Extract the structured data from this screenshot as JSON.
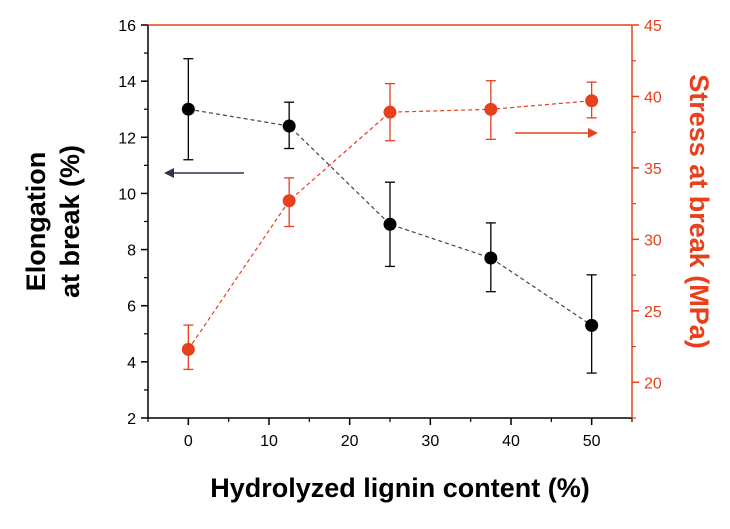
{
  "chart_data": {
    "type": "scatter",
    "xlabel": "Hydrolyzed lignin content (%)",
    "xlim": [
      -5,
      55
    ],
    "xticks": [
      0,
      10,
      20,
      30,
      40,
      50
    ],
    "y_left": {
      "label_line1": "Elongation",
      "label_line2": "at break (%)",
      "ylim": [
        2,
        16
      ],
      "ticks": [
        2,
        4,
        6,
        8,
        10,
        12,
        14,
        16
      ],
      "color": "#000000"
    },
    "y_right": {
      "label": "Stress at break (MPa)",
      "ylim": [
        17.5,
        45
      ],
      "ticks": [
        20,
        25,
        30,
        35,
        40,
        45
      ],
      "color": "#e8401c"
    },
    "series": [
      {
        "axis": "left",
        "color": "#000000",
        "x": [
          0,
          12.5,
          25,
          37.5,
          50
        ],
        "y": [
          13.0,
          12.4,
          8.9,
          7.7,
          5.3
        ],
        "err_low": [
          11.2,
          11.6,
          7.4,
          6.5,
          3.6
        ],
        "err_high": [
          14.8,
          13.25,
          10.4,
          8.95,
          7.1
        ]
      },
      {
        "axis": "right",
        "color": "#e8401c",
        "x": [
          0,
          12.5,
          25,
          37.5,
          50
        ],
        "y": [
          22.3,
          32.7,
          38.9,
          39.1,
          39.7
        ],
        "err_low": [
          20.9,
          30.9,
          36.9,
          37.0,
          38.5
        ],
        "err_high": [
          24.0,
          34.3,
          40.9,
          41.1,
          41.0
        ]
      }
    ],
    "annotations": [
      {
        "type": "arrow",
        "direction": "left",
        "points_to": "left-axis",
        "color": "#3a2e48"
      },
      {
        "type": "arrow",
        "direction": "right",
        "points_to": "right-axis",
        "color": "#e8401c"
      }
    ]
  }
}
